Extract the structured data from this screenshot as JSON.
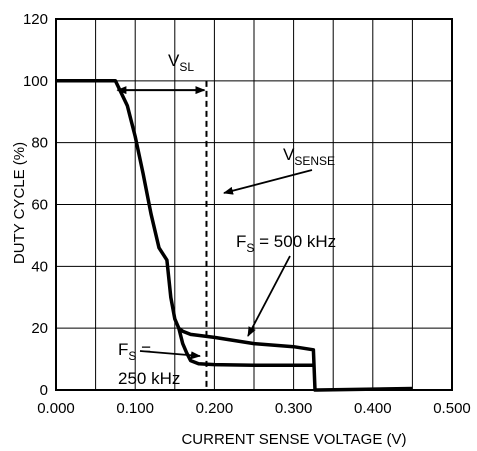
{
  "chart_data": {
    "type": "line",
    "xlabel": "CURRENT SENSE VOLTAGE (V)",
    "ylabel": "DUTY CYCLE (%)",
    "xlim": [
      0,
      0.5
    ],
    "ylim": [
      0,
      120
    ],
    "grid": true,
    "x_ticks": [
      "0.000",
      "0.100",
      "0.200",
      "0.300",
      "0.400",
      "0.500"
    ],
    "y_ticks": [
      "0",
      "20",
      "40",
      "60",
      "80",
      "100",
      "120"
    ],
    "x_tick_values": [
      0,
      0.1,
      0.2,
      0.3,
      0.4,
      0.5
    ],
    "y_tick_values": [
      0,
      20,
      40,
      60,
      80,
      100,
      120
    ],
    "series": [
      {
        "name": "FS = 500 kHz",
        "x": [
          0.0,
          0.075,
          0.09,
          0.1,
          0.11,
          0.12,
          0.13,
          0.14,
          0.145,
          0.15,
          0.155,
          0.16,
          0.17,
          0.2,
          0.25,
          0.3,
          0.325,
          0.327,
          0.33,
          0.45
        ],
        "y": [
          100,
          100,
          92,
          82,
          70,
          57,
          46,
          42,
          30,
          23,
          20,
          19,
          18,
          17,
          15,
          14,
          13,
          0,
          0,
          0.5
        ]
      },
      {
        "name": "FS = 250 kHz",
        "x": [
          0.155,
          0.16,
          0.165,
          0.17,
          0.18,
          0.2,
          0.25,
          0.3,
          0.325
        ],
        "y": [
          20,
          15,
          12,
          9.5,
          8.5,
          8.2,
          8,
          8,
          8
        ]
      }
    ],
    "annotations": {
      "vsl": {
        "main": "V",
        "sub": "SL",
        "x_start": 0.075,
        "x_end": 0.19,
        "y": 97
      },
      "vsense": {
        "main": "V",
        "sub": "SENSE",
        "x": 0.19
      },
      "fs500": {
        "main": "F",
        "sub": "S",
        "rest": " = 500 kHz"
      },
      "fs250": {
        "main": "F",
        "sub": "S",
        "rest": " =",
        "line2": "250 kHz"
      }
    }
  }
}
